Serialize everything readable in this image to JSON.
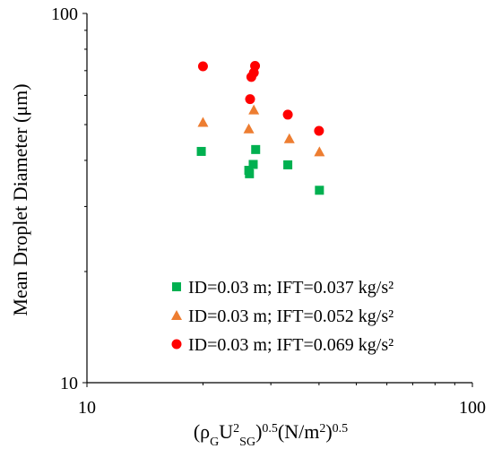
{
  "chart_data": {
    "type": "scatter",
    "title": "",
    "xlabel": {
      "main": "(ρ",
      "sub1": "G",
      "mid1": "U",
      "sup1": "2",
      "sub2": "SG",
      "mid2": ")",
      "sup2": "0.5",
      "mid3": "(N/m",
      "sup3": "2",
      "mid4": ")",
      "sup4": "0.5"
    },
    "ylabel": "Mean Droplet Diameter (μm)",
    "xscale": "log",
    "yscale": "log",
    "xlim": [
      10,
      100
    ],
    "ylim": [
      10,
      100
    ],
    "xticks": [
      "10",
      "100"
    ],
    "yticks": [
      "10",
      "100"
    ],
    "grid": false,
    "legend_position": "bottom-right",
    "series": [
      {
        "name": "ID=0.03 m; IFT=0.037 kg/s²",
        "marker": "square",
        "color": "#00b050",
        "points": [
          [
            19.8,
            42.3
          ],
          [
            26.3,
            37.6
          ],
          [
            26.4,
            36.8
          ],
          [
            27.0,
            39.0
          ],
          [
            27.4,
            42.8
          ],
          [
            33.2,
            38.9
          ],
          [
            40.1,
            33.2
          ]
        ]
      },
      {
        "name": "ID=0.03 m; IFT=0.052 kg/s²",
        "marker": "triangle",
        "color": "#ed7d31",
        "points": [
          [
            20.0,
            50.7
          ],
          [
            26.3,
            48.7
          ],
          [
            27.1,
            54.8
          ],
          [
            33.5,
            45.8
          ],
          [
            40.1,
            42.2
          ]
        ]
      },
      {
        "name": "ID=0.03 m; IFT=0.069 kg/s²",
        "marker": "circle",
        "color": "#ff0000",
        "points": [
          [
            20.0,
            71.9
          ],
          [
            26.5,
            58.6
          ],
          [
            26.7,
            67.3
          ],
          [
            27.1,
            69.1
          ],
          [
            27.3,
            72.1
          ],
          [
            33.2,
            53.2
          ],
          [
            40.0,
            48.1
          ]
        ]
      }
    ]
  }
}
